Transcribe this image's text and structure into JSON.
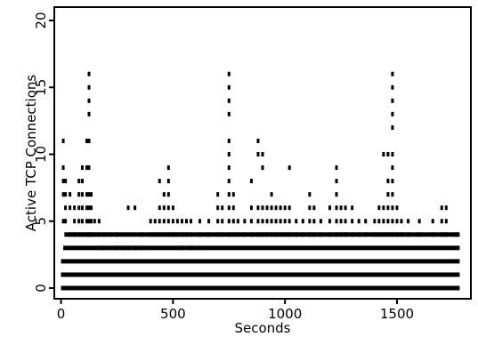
{
  "chart_data": {
    "type": "scatter",
    "title": "",
    "xlabel": "Seconds",
    "ylabel": "Active TCP Connections",
    "xlim": [
      -30,
      1830
    ],
    "ylim": [
      -0.8,
      21
    ],
    "xticks": [
      0,
      500,
      1000,
      1500
    ],
    "yticks": [
      0,
      5,
      10,
      15,
      20
    ],
    "marker": "|",
    "color": "#000000",
    "baseline_rows": [
      {
        "y": 0,
        "x_start": 0,
        "x_end": 1780
      },
      {
        "y": 1,
        "x_start": 0,
        "x_end": 1780
      },
      {
        "y": 2,
        "x_start": 0,
        "x_end": 1780
      },
      {
        "y": 3,
        "x_start": 10,
        "x_end": 1780
      },
      {
        "y": 4,
        "x_start": 15,
        "x_end": 1780
      }
    ],
    "columns": [
      {
        "x": 10,
        "y": [
          5,
          7,
          8,
          9,
          11
        ]
      },
      {
        "x": 20,
        "y": [
          5,
          6,
          7,
          8
        ]
      },
      {
        "x": 40,
        "y": [
          4,
          6,
          7
        ]
      },
      {
        "x": 60,
        "y": [
          4,
          5,
          6
        ]
      },
      {
        "x": 80,
        "y": [
          4,
          5,
          6,
          7,
          8
        ]
      },
      {
        "x": 95,
        "y": [
          4,
          5,
          6,
          7,
          8,
          9
        ]
      },
      {
        "x": 115,
        "y": [
          4,
          5,
          6,
          7,
          9,
          11
        ]
      },
      {
        "x": 125,
        "y": [
          4,
          5,
          6,
          7,
          9,
          11,
          13,
          14,
          15,
          16
        ]
      },
      {
        "x": 135,
        "y": [
          4,
          5,
          6,
          7
        ]
      },
      {
        "x": 150,
        "y": [
          4,
          5
        ]
      },
      {
        "x": 170,
        "y": [
          4,
          5
        ]
      },
      {
        "x": 190,
        "y": [
          3,
          4
        ]
      },
      {
        "x": 220,
        "y": [
          4
        ]
      },
      {
        "x": 250,
        "y": [
          3,
          4
        ]
      },
      {
        "x": 280,
        "y": [
          3
        ]
      },
      {
        "x": 300,
        "y": [
          3,
          6
        ]
      },
      {
        "x": 330,
        "y": [
          3,
          6
        ]
      },
      {
        "x": 360,
        "y": [
          3,
          4
        ]
      },
      {
        "x": 400,
        "y": [
          4,
          5
        ]
      },
      {
        "x": 420,
        "y": [
          4,
          5
        ]
      },
      {
        "x": 440,
        "y": [
          4,
          5,
          6,
          8
        ]
      },
      {
        "x": 460,
        "y": [
          4,
          5,
          6,
          7
        ]
      },
      {
        "x": 480,
        "y": [
          4,
          5,
          6,
          7,
          8,
          9
        ]
      },
      {
        "x": 500,
        "y": [
          4,
          5,
          6
        ]
      },
      {
        "x": 520,
        "y": [
          4,
          5
        ]
      },
      {
        "x": 540,
        "y": [
          3,
          4,
          5
        ]
      },
      {
        "x": 560,
        "y": [
          4,
          5
        ]
      },
      {
        "x": 580,
        "y": [
          3,
          4,
          5
        ]
      },
      {
        "x": 620,
        "y": [
          3,
          4,
          5
        ]
      },
      {
        "x": 660,
        "y": [
          4,
          5
        ]
      },
      {
        "x": 700,
        "y": [
          4,
          5,
          6,
          7
        ]
      },
      {
        "x": 720,
        "y": [
          4,
          5,
          6
        ]
      },
      {
        "x": 750,
        "y": [
          4,
          5,
          6,
          7,
          8,
          9,
          10,
          11,
          13,
          14,
          15,
          16
        ]
      },
      {
        "x": 770,
        "y": [
          4,
          5,
          6,
          7
        ]
      },
      {
        "x": 790,
        "y": [
          4,
          5
        ]
      },
      {
        "x": 820,
        "y": [
          4,
          5
        ]
      },
      {
        "x": 850,
        "y": [
          4,
          5,
          6,
          8
        ]
      },
      {
        "x": 880,
        "y": [
          4,
          5,
          6,
          10,
          11
        ]
      },
      {
        "x": 900,
        "y": [
          4,
          5,
          6,
          9,
          10
        ]
      },
      {
        "x": 920,
        "y": [
          4,
          5,
          6
        ]
      },
      {
        "x": 940,
        "y": [
          4,
          5,
          6,
          7
        ]
      },
      {
        "x": 960,
        "y": [
          4,
          5,
          6
        ]
      },
      {
        "x": 980,
        "y": [
          4,
          5,
          6
        ]
      },
      {
        "x": 1000,
        "y": [
          4,
          5,
          6
        ]
      },
      {
        "x": 1020,
        "y": [
          4,
          5,
          6,
          9
        ]
      },
      {
        "x": 1050,
        "y": [
          4,
          5
        ]
      },
      {
        "x": 1080,
        "y": [
          4,
          5
        ]
      },
      {
        "x": 1110,
        "y": [
          4,
          5,
          6,
          7
        ]
      },
      {
        "x": 1130,
        "y": [
          4,
          5,
          6
        ]
      },
      {
        "x": 1160,
        "y": [
          4,
          5
        ]
      },
      {
        "x": 1200,
        "y": [
          4,
          5,
          6
        ]
      },
      {
        "x": 1230,
        "y": [
          4,
          5,
          6,
          7,
          8,
          9
        ]
      },
      {
        "x": 1250,
        "y": [
          4,
          5,
          6
        ]
      },
      {
        "x": 1270,
        "y": [
          4,
          5,
          6
        ]
      },
      {
        "x": 1300,
        "y": [
          4,
          5,
          6
        ]
      },
      {
        "x": 1330,
        "y": [
          4,
          5
        ]
      },
      {
        "x": 1360,
        "y": [
          4,
          5
        ]
      },
      {
        "x": 1400,
        "y": [
          4,
          5
        ]
      },
      {
        "x": 1420,
        "y": [
          4,
          5,
          6
        ]
      },
      {
        "x": 1440,
        "y": [
          4,
          5,
          6,
          10
        ]
      },
      {
        "x": 1460,
        "y": [
          4,
          5,
          6,
          7,
          8,
          10
        ]
      },
      {
        "x": 1480,
        "y": [
          4,
          5,
          6,
          7,
          8,
          9,
          10,
          12,
          13,
          14,
          15,
          16
        ]
      },
      {
        "x": 1500,
        "y": [
          4,
          5,
          6
        ]
      },
      {
        "x": 1520,
        "y": [
          4,
          5
        ]
      },
      {
        "x": 1550,
        "y": [
          4,
          5
        ]
      },
      {
        "x": 1600,
        "y": [
          4,
          5
        ]
      },
      {
        "x": 1660,
        "y": [
          4,
          5
        ]
      },
      {
        "x": 1700,
        "y": [
          4,
          5,
          6
        ]
      },
      {
        "x": 1720,
        "y": [
          4,
          5,
          6
        ]
      },
      {
        "x": 1760,
        "y": [
          4
        ]
      }
    ]
  }
}
